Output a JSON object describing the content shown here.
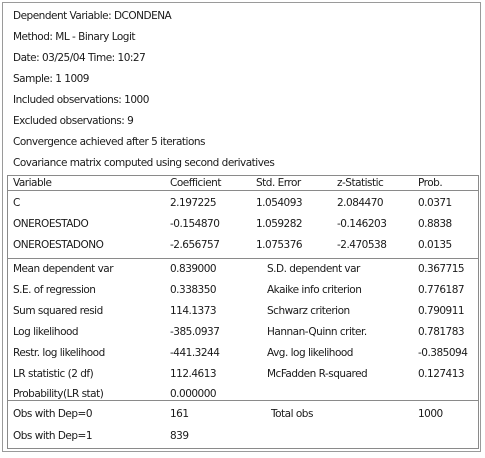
{
  "header": [
    "Dependent Variable: DCONDENA",
    "Method: ML - Binary Logit",
    "Date: 03/25/04   Time: 10:27",
    "Sample: 1 1009",
    "Included observations: 1000",
    "Excluded observations: 9",
    "Convergence achieved after 5 iterations",
    "Covariance matrix computed using second derivatives"
  ],
  "columns": [
    "Variable",
    "Coefficient",
    "Std. Error",
    "z-Statistic",
    "Prob."
  ],
  "coefficients": [
    [
      "C",
      "2.197225",
      "1.054093",
      "2.084470",
      "0.0371"
    ],
    [
      "ONEROESTADO",
      "-0.154870",
      "1.059282",
      "-0.146203",
      "0.8838"
    ],
    [
      "ONEROESTADONO",
      "-2.656757",
      "1.075376",
      "-2.470538",
      "0.0135"
    ]
  ],
  "stats": [
    [
      "Mean dependent var",
      "0.839000",
      "S.D. dependent var",
      "0.367715"
    ],
    [
      "S.E. of regression",
      "0.338350",
      "Akaike info criterion",
      "0.776187"
    ],
    [
      "Sum squared resid",
      "114.1373",
      "Schwarz criterion",
      "0.790911"
    ],
    [
      "Log likelihood",
      "-385.0937",
      "Hannan-Quinn criter.",
      "0.781783"
    ],
    [
      "Restr. log likelihood",
      "-441.3244",
      "Avg. log likelihood",
      "-0.385094"
    ],
    [
      "LR statistic (2 df)",
      "112.4613",
      "McFadden R-squared",
      "0.127413"
    ],
    [
      "Probability(LR stat)",
      "0.000000",
      "",
      ""
    ]
  ],
  "obs": [
    [
      "Obs with Dep=0",
      "161",
      "Total obs",
      "1000"
    ],
    [
      "Obs with Dep=1",
      "839",
      "",
      ""
    ]
  ]
}
